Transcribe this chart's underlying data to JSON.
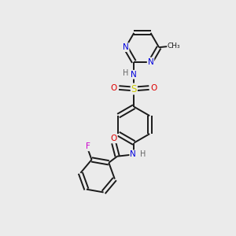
{
  "background_color": "#ebebeb",
  "bond_color": "#1a1a1a",
  "atom_colors": {
    "N": "#0000dd",
    "O": "#dd0000",
    "S": "#cccc00",
    "F": "#cc00cc",
    "H": "#666666",
    "C": "#1a1a1a"
  },
  "figsize": [
    3.0,
    3.0
  ],
  "dpi": 100
}
